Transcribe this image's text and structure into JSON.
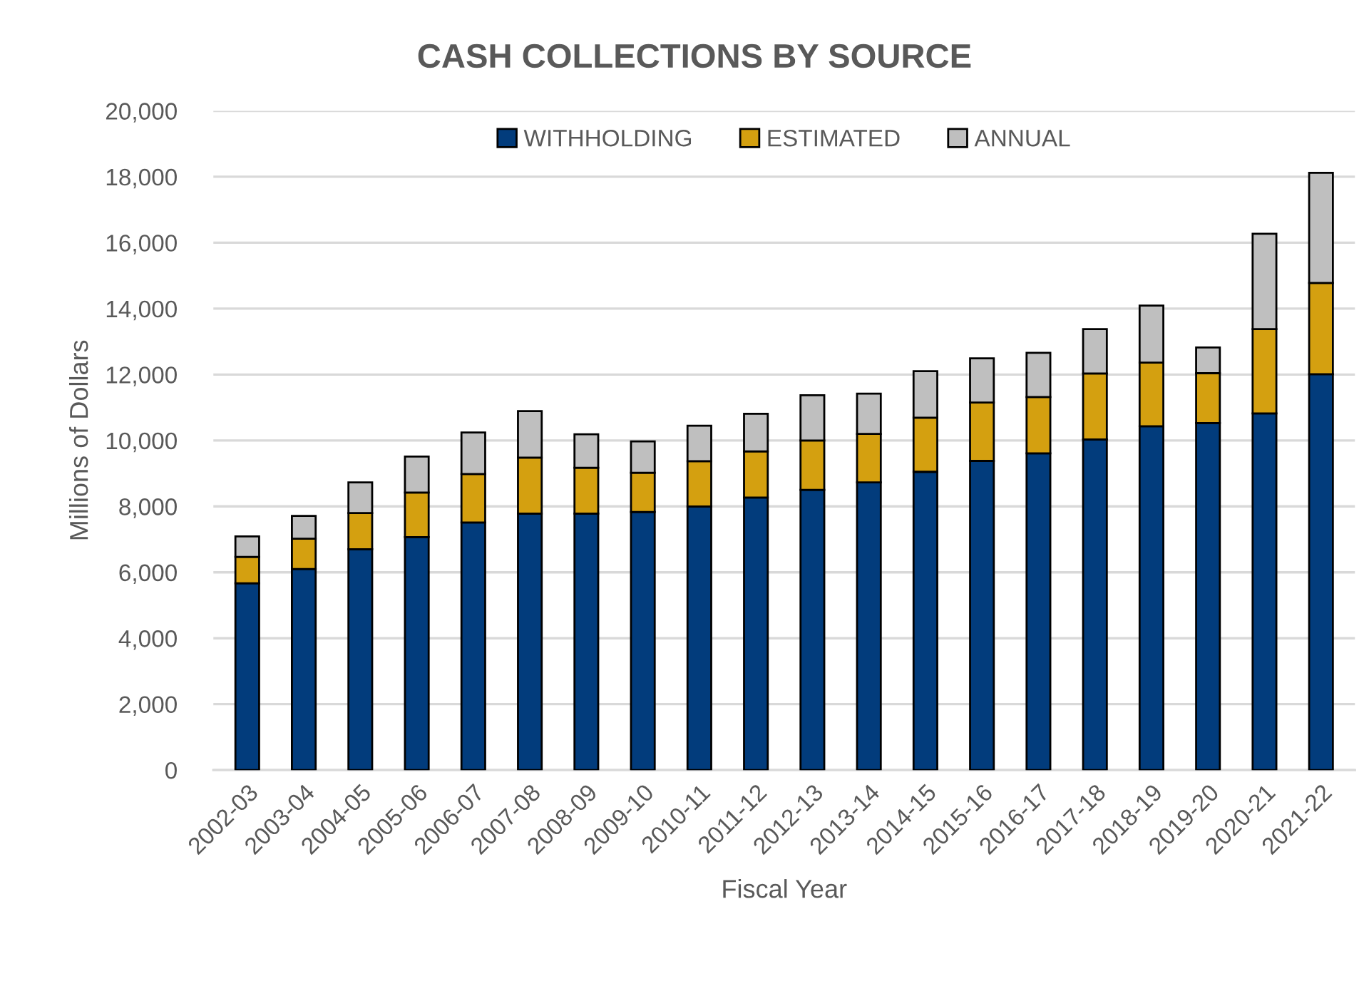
{
  "chart_data": {
    "type": "bar",
    "title": "CASH COLLECTIONS BY SOURCE",
    "xlabel": "Fiscal Year",
    "ylabel": "Millions of Dollars",
    "categories": [
      "2002-03",
      "2003-04",
      "2004-05",
      "2005-06",
      "2006-07",
      "2007-08",
      "2008-09",
      "2009-10",
      "2010-11",
      "2011-12",
      "2012-13",
      "2013-14",
      "2014-15",
      "2015-16",
      "2016-17",
      "2017-18",
      "2018-19",
      "2019-20",
      "2020-21",
      "2021-22"
    ],
    "stacked": true,
    "series": [
      {
        "name": "WITHHOLDING",
        "color": "#023c7c",
        "values": [
          5670,
          6100,
          6700,
          7070,
          7510,
          7780,
          7780,
          7830,
          8000,
          8270,
          8500,
          8730,
          9050,
          9380,
          9610,
          10030,
          10430,
          10530,
          10820,
          12010
        ]
      },
      {
        "name": "ESTIMATED",
        "color": "#d4a010",
        "values": [
          800,
          920,
          1100,
          1350,
          1470,
          1700,
          1390,
          1190,
          1370,
          1400,
          1500,
          1470,
          1640,
          1770,
          1710,
          2000,
          1930,
          1510,
          2560,
          2770
        ]
      },
      {
        "name": "ANNUAL",
        "color": "#bfbfbf",
        "values": [
          620,
          690,
          930,
          1090,
          1260,
          1410,
          1020,
          950,
          1080,
          1140,
          1370,
          1220,
          1410,
          1340,
          1340,
          1350,
          1730,
          780,
          2890,
          3340
        ]
      }
    ],
    "ylim": [
      0,
      20000
    ],
    "yticks": [
      0,
      {
        "value": 2000,
        "label": "2,000"
      },
      {
        "value": 4000,
        "label": "4,000"
      },
      {
        "value": 6000,
        "label": "6,000"
      },
      {
        "value": 8000,
        "label": "8,000"
      },
      {
        "value": 10000,
        "label": "10,000"
      },
      {
        "value": 12000,
        "label": "12,000"
      },
      {
        "value": 14000,
        "label": "14,000"
      },
      {
        "value": 16000,
        "label": "16,000"
      },
      {
        "value": 18000,
        "label": "18,000"
      },
      {
        "value": 20000,
        "label": "20,000"
      }
    ],
    "grid": "y",
    "legend": "top"
  }
}
